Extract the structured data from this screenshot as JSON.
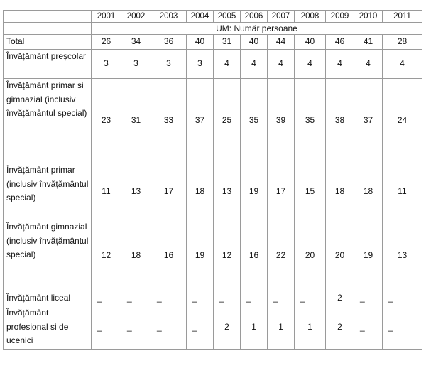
{
  "years": [
    "2001",
    "2002",
    "2003",
    "2004",
    "2005",
    "2006",
    "2007",
    "2008",
    "2009",
    "2010",
    "2011"
  ],
  "unit": "UM: Număr persoane",
  "rows": [
    {
      "label": "Total",
      "values": [
        "26",
        "34",
        "36",
        "40",
        "31",
        "40",
        "44",
        "40",
        "46",
        "41",
        "28"
      ]
    },
    {
      "label": "Învățământ preșcolar",
      "values": [
        "3",
        "3",
        "3",
        "3",
        "4",
        "4",
        "4",
        "4",
        "4",
        "4",
        "4"
      ]
    },
    {
      "label": "Învățământ primar si gimnazial (inclusiv învățământul special)",
      "values": [
        "23",
        "31",
        "33",
        "37",
        "25",
        "35",
        "39",
        "35",
        "38",
        "37",
        "24"
      ]
    },
    {
      "label": "Învățământ primar (inclusiv învățământul special)",
      "values": [
        "11",
        "13",
        "17",
        "18",
        "13",
        "19",
        "17",
        "15",
        "18",
        "18",
        "11"
      ]
    },
    {
      "label": "Învățământ gimnazial (inclusiv învățământul special)",
      "values": [
        "12",
        "18",
        "16",
        "19",
        "12",
        "16",
        "22",
        "20",
        "20",
        "19",
        "13"
      ]
    },
    {
      "label": "Învățământ liceal",
      "values": [
        "_",
        "_",
        "_",
        "_",
        "_",
        "_",
        "_",
        "_",
        "2",
        "_",
        "_"
      ]
    },
    {
      "label": "Învățământ profesional si de ucenici",
      "values": [
        "_",
        "_",
        "_",
        "_",
        "2",
        "1",
        "1",
        "1",
        "2",
        "_",
        "_"
      ]
    }
  ]
}
